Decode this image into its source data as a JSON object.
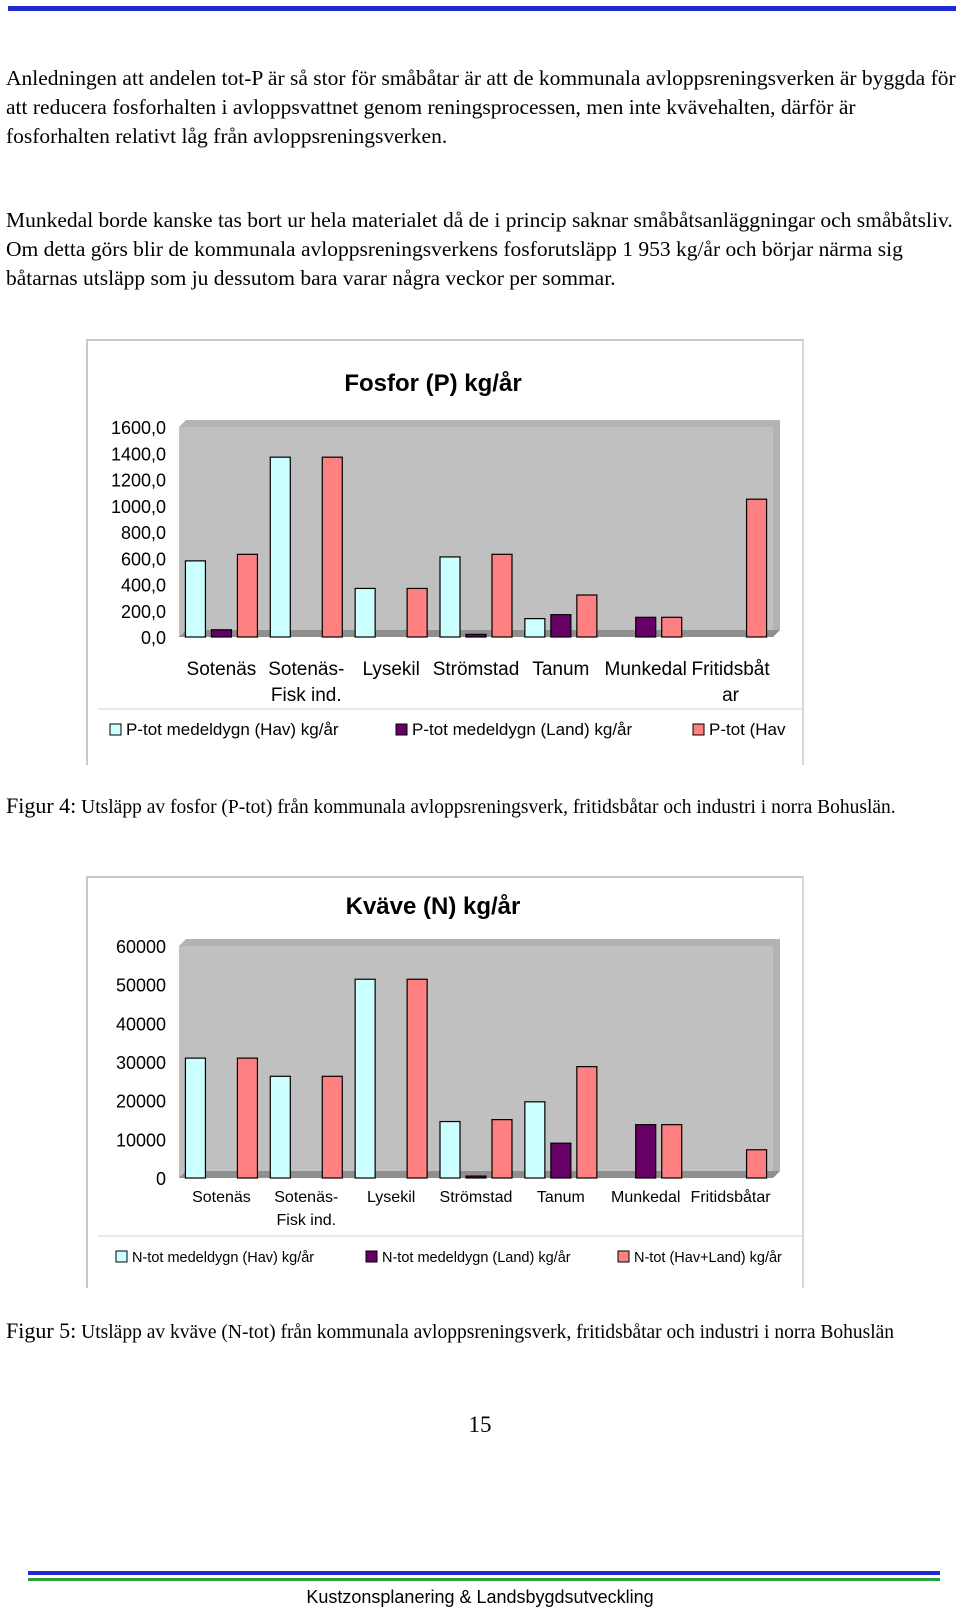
{
  "paragraphs": {
    "p1": "Anledningen att andelen tot-P är så stor för småbåtar är att de kommunala avloppsreningsverken är byggda för att reducera fosforhalten i avloppsvattnet genom reningsprocessen, men inte kvävehalten, därför är fosforhalten relativt låg från avloppsreningsverken.",
    "p2": "Munkedal borde kanske tas bort ur hela materialet då de i princip saknar småbåtsanläggningar och småbåtsliv. Om detta görs blir de kommunala avloppsreningsverkens fosforutsläpp 1 953 kg/år och börjar närma sig båtarnas utsläpp som ju dessutom bara varar några veckor per sommar."
  },
  "colors": {
    "hav": "#ccffff",
    "land": "#660066",
    "total": "#ff8080",
    "plot_bg": "#c0c0c0",
    "rule_blue": "#1f2bd1",
    "rule_green": "#2e9e3a"
  },
  "chart_data": [
    {
      "type": "bar",
      "title": "Fosfor (P) kg/år",
      "categories": [
        "Sotenäs",
        "Sotenäs-\nFisk ind.",
        "Lysekil",
        "Strömstad",
        "Tanum",
        "Munkedal",
        "Fritidsbåt\nar"
      ],
      "ylim": [
        0,
        1600
      ],
      "yticks": [
        "1600,0",
        "1400,0",
        "1200,0",
        "1000,0",
        "800,0",
        "600,0",
        "400,0",
        "200,0",
        "0,0"
      ],
      "legend": [
        "P-tot medeldygn (Hav) kg/år",
        "P-tot medeldygn (Land) kg/år",
        "P-tot (Hav"
      ],
      "series": [
        {
          "name": "P-tot medeldygn (Hav) kg/år",
          "values": [
            580,
            1370,
            370,
            610,
            140,
            0,
            0
          ]
        },
        {
          "name": "P-tot medeldygn (Land) kg/år",
          "values": [
            55,
            0,
            0,
            20,
            170,
            150,
            0
          ]
        },
        {
          "name": "P-tot (Hav",
          "values": [
            630,
            1370,
            370,
            630,
            320,
            150,
            1050
          ]
        }
      ]
    },
    {
      "type": "bar",
      "title": "Kväve (N) kg/år",
      "categories": [
        "Sotenäs",
        "Sotenäs-\nFisk ind.",
        "Lysekil",
        "Strömstad",
        "Tanum",
        "Munkedal",
        "Fritidsbåtar"
      ],
      "ylim": [
        0,
        60000
      ],
      "yticks": [
        "60000",
        "50000",
        "40000",
        "30000",
        "20000",
        "10000",
        "0"
      ],
      "legend": [
        "N-tot medeldygn (Hav) kg/år",
        "N-tot medeldygn (Land) kg/år",
        "N-tot (Hav+Land) kg/år"
      ],
      "series": [
        {
          "name": "N-tot medeldygn (Hav) kg/år",
          "values": [
            31000,
            26300,
            51400,
            14600,
            19700,
            0,
            0
          ]
        },
        {
          "name": "N-tot medeldygn (Land) kg/år",
          "values": [
            0,
            0,
            0,
            500,
            9000,
            13800,
            0
          ]
        },
        {
          "name": "N-tot (Hav+Land) kg/år",
          "values": [
            31000,
            26300,
            51400,
            15100,
            28800,
            13800,
            7300
          ]
        }
      ]
    }
  ],
  "captions": {
    "fig4_label": "Figur 4:",
    "fig4_text": " Utsläpp av fosfor (P-tot) från kommunala avloppsreningsverk, fritidsbåtar och industri i norra Bohuslän.",
    "fig5_label": "Figur 5:",
    "fig5_text": " Utsläpp av kväve (N-tot) från kommunala avloppsreningsverk, fritidsbåtar och industri i norra Bohuslän"
  },
  "page_number": "15",
  "footer": "Kustzonsplanering & Landsbygdsutveckling"
}
